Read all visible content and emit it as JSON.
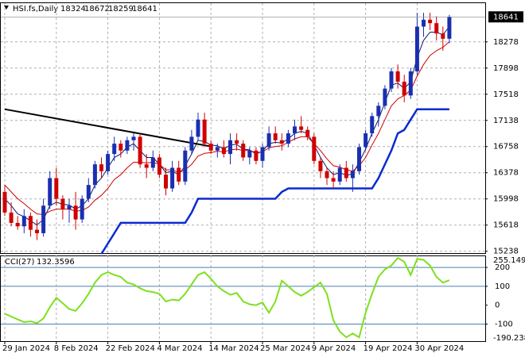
{
  "chart_data": [
    {
      "type": "candlestick",
      "title": "HSI.fs,Daily",
      "categories": [
        "29 Jan 2024",
        null,
        null,
        null,
        null,
        null,
        null,
        null,
        "8 Feb 2024",
        null,
        null,
        null,
        null,
        null,
        null,
        null,
        "22 Feb 2024",
        null,
        null,
        null,
        null,
        null,
        null,
        null,
        "4 Mar 2024",
        null,
        null,
        null,
        null,
        null,
        null,
        null,
        "14 Mar 2024",
        null,
        null,
        null,
        null,
        null,
        null,
        null,
        "25 Mar 2024",
        null,
        null,
        null,
        null,
        null,
        null,
        null,
        "9 Apr 2024",
        null,
        null,
        null,
        null,
        null,
        null,
        null,
        "19 Apr 2024",
        null,
        null,
        null,
        null,
        null,
        null,
        null,
        "30 Apr 2024",
        null,
        null,
        null,
        null,
        null
      ],
      "open": [
        16100,
        15800,
        15650,
        15600,
        15750,
        15550,
        15500,
        15900,
        16300,
        16000,
        15850,
        15900,
        15700,
        16000,
        16200,
        16500,
        16400,
        16650,
        16800,
        16700,
        16850,
        16900,
        16500,
        16450,
        16600,
        16350,
        16150,
        16450,
        16250,
        16700,
        16900,
        17150,
        16800,
        16700,
        16750,
        16650,
        16850,
        16800,
        16600,
        16700,
        16550,
        16750,
        16950,
        16850,
        16800,
        16950,
        17050,
        17000,
        16900,
        16550,
        16400,
        16300,
        16250,
        16450,
        16300,
        16400,
        16750,
        16950,
        17200,
        17350,
        17600,
        17850,
        17700,
        17500,
        17850,
        18500,
        18600,
        18550,
        18400,
        18324
      ],
      "high": [
        16200,
        15950,
        15750,
        15850,
        15800,
        15700,
        16000,
        16400,
        16450,
        16050,
        16000,
        16100,
        16050,
        16300,
        16550,
        16600,
        16700,
        16900,
        16850,
        16900,
        16950,
        16950,
        16650,
        16700,
        16650,
        16450,
        16550,
        16550,
        16750,
        17000,
        17250,
        17250,
        16850,
        16800,
        16850,
        16950,
        16950,
        16850,
        16750,
        16750,
        16800,
        17050,
        17050,
        16950,
        17000,
        17150,
        17200,
        17050,
        16950,
        16600,
        16450,
        16400,
        16500,
        16550,
        16500,
        16800,
        17000,
        17250,
        17400,
        17650,
        17900,
        17950,
        17800,
        17900,
        18700,
        18700,
        18700,
        18650,
        18500,
        18672
      ],
      "low": [
        15750,
        15600,
        15550,
        15500,
        15450,
        15400,
        15450,
        15850,
        15900,
        15700,
        15650,
        15550,
        15650,
        15950,
        16150,
        16300,
        16350,
        16550,
        16600,
        16650,
        16700,
        16450,
        16300,
        16400,
        16300,
        16050,
        16100,
        16200,
        16200,
        16650,
        16850,
        16750,
        16650,
        16600,
        16600,
        16500,
        16700,
        16550,
        16500,
        16500,
        16450,
        16700,
        16800,
        16700,
        16750,
        16850,
        16950,
        16850,
        16500,
        16300,
        16200,
        16150,
        16200,
        16250,
        16100,
        16350,
        16700,
        16900,
        17050,
        17300,
        17550,
        17600,
        17400,
        17450,
        17800,
        18350,
        18450,
        18300,
        18150,
        18259
      ],
      "close": [
        15800,
        15650,
        15600,
        15750,
        15550,
        15500,
        15900,
        16300,
        16000,
        15850,
        15900,
        15700,
        16000,
        16200,
        16500,
        16400,
        16650,
        16800,
        16700,
        16850,
        16900,
        16500,
        16450,
        16600,
        16350,
        16150,
        16450,
        16250,
        16700,
        16900,
        17150,
        16800,
        16700,
        16750,
        16650,
        16850,
        16800,
        16600,
        16700,
        16550,
        16750,
        16950,
        16850,
        16800,
        16950,
        17050,
        17000,
        16900,
        16550,
        16400,
        16300,
        16250,
        16450,
        16300,
        16400,
        16750,
        16950,
        17200,
        17350,
        17600,
        17850,
        17700,
        17500,
        17850,
        18500,
        18600,
        18550,
        18400,
        18324,
        18641
      ],
      "up_color": "#1a2fb0",
      "down_color": "#d00000",
      "series": [
        {
          "color": "#0a1a70",
          "width": 1,
          "values": [
            16000,
            15900,
            15780,
            15740,
            15680,
            15620,
            15700,
            15900,
            15950,
            15920,
            15910,
            15850,
            15900,
            16000,
            16200,
            16300,
            16450,
            16600,
            16650,
            16750,
            16800,
            16700,
            16600,
            16600,
            16500,
            16380,
            16400,
            16350,
            16480,
            16650,
            16850,
            16830,
            16780,
            16770,
            16720,
            16780,
            16790,
            16720,
            16710,
            16650,
            16690,
            16800,
            16820,
            16810,
            16870,
            16950,
            16980,
            16950,
            16780,
            16600,
            16450,
            16350,
            16380,
            16340,
            16360,
            16530,
            16720,
            16950,
            17150,
            17400,
            17650,
            17680,
            17600,
            17700,
            18050,
            18300,
            18420,
            18420,
            18380,
            18500
          ]
        },
        {
          "color": "#d00000",
          "width": 1,
          "values": [
            16200,
            16100,
            16000,
            15930,
            15850,
            15780,
            15770,
            15820,
            15850,
            15850,
            15850,
            15820,
            15830,
            15880,
            15980,
            16050,
            16150,
            16280,
            16350,
            16450,
            16530,
            16530,
            16520,
            16530,
            16500,
            16420,
            16420,
            16380,
            16420,
            16500,
            16620,
            16660,
            16670,
            16690,
            16680,
            16710,
            16720,
            16700,
            16700,
            16670,
            16680,
            16740,
            16760,
            16770,
            16820,
            16870,
            16900,
            16900,
            16800,
            16700,
            16580,
            16480,
            16460,
            16420,
            16400,
            16480,
            16600,
            16780,
            16950,
            17150,
            17350,
            17450,
            17500,
            17580,
            17780,
            17950,
            18080,
            18150,
            18200,
            18280
          ]
        },
        {
          "color": "#0a2ad0",
          "width": 2.5,
          "values": [
            null,
            null,
            null,
            null,
            null,
            null,
            null,
            null,
            null,
            null,
            null,
            null,
            null,
            null,
            null,
            15200,
            15350,
            15500,
            15650,
            15650,
            15650,
            15650,
            15650,
            15650,
            15650,
            15650,
            15650,
            15650,
            15650,
            15800,
            16000,
            16000,
            16000,
            16000,
            16000,
            16000,
            16000,
            16000,
            16000,
            16000,
            16000,
            16000,
            16000,
            16100,
            16150,
            16150,
            16150,
            16150,
            16150,
            16150,
            16150,
            16150,
            16150,
            16150,
            16150,
            16150,
            16150,
            16150,
            16300,
            16500,
            16700,
            16950,
            17000,
            17150,
            17300,
            17300,
            17300,
            17300,
            17300,
            17300
          ]
        }
      ],
      "trendline": {
        "start_index": 0,
        "start": 17300,
        "end_index": 32,
        "end": 16760,
        "color": "#000"
      },
      "ylim": [
        15200,
        18840
      ],
      "yticks": [
        15238,
        15618,
        15998,
        16378,
        16758,
        17138,
        17518,
        17898,
        18278
      ],
      "grid": true
    },
    {
      "type": "line",
      "title": "CCI(27)",
      "series": [
        {
          "color": "#7ee01e",
          "values": [
            -45,
            -60,
            -75,
            -90,
            -85,
            -95,
            -70,
            -10,
            40,
            10,
            -20,
            -30,
            10,
            60,
            120,
            160,
            175,
            160,
            150,
            120,
            110,
            90,
            75,
            70,
            60,
            20,
            30,
            25,
            60,
            110,
            160,
            175,
            140,
            100,
            75,
            55,
            65,
            20,
            5,
            0,
            15,
            -40,
            20,
            130,
            100,
            70,
            50,
            70,
            95,
            120,
            60,
            -80,
            -140,
            -170,
            -150,
            -170,
            -40,
            60,
            150,
            190,
            210,
            250,
            230,
            160,
            245,
            240,
            210,
            150,
            120,
            132.3596
          ]
        }
      ],
      "levels": [
        200,
        100,
        -100
      ],
      "level_color": "#4a7fb0",
      "ylim": [
        -190.238,
        255.1494
      ],
      "yticks": [
        200,
        100,
        0,
        -100
      ]
    }
  ]
}
